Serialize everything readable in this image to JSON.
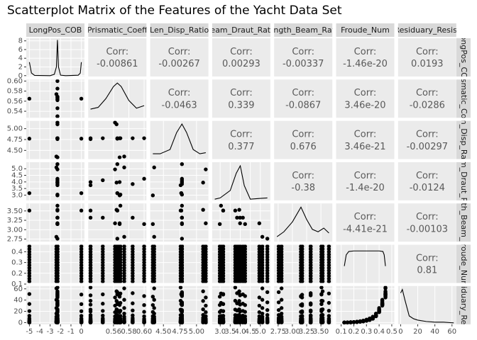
{
  "chart_data": {
    "type": "scatter_matrix",
    "title": "Scatterplot Matrix of the Features of the Yacht Data Set",
    "corr_label": "Corr:",
    "point_color": "#000000",
    "variables": [
      {
        "name": "LongPos_COB",
        "xlim": [
          -5.3,
          0.3
        ],
        "xticks": [
          -5,
          -4,
          -3,
          -2,
          -1,
          0
        ],
        "density": {
          "x": [
            -5,
            -4.8,
            -4.5,
            -3,
            -2.6,
            -2.4,
            -2.3,
            -2.2,
            -2,
            -1.5,
            -0.3,
            -0.1,
            0
          ],
          "y": [
            3.1,
            0.6,
            0.05,
            0,
            0.3,
            2,
            8.2,
            2,
            0.1,
            0,
            0.1,
            0.6,
            3.1
          ],
          "ylim": [
            -0.2,
            8.6
          ],
          "yticks": [
            0,
            2,
            4,
            6,
            8
          ]
        }
      },
      {
        "name": "Prismatic_Coeff",
        "xlim": [
          0.527,
          0.603
        ],
        "xticks": [
          0.56,
          0.58,
          {
            "value": 0.6,
            "label": "0.60"
          }
        ],
        "ylim": [
          0.527,
          0.603
        ],
        "yticks": [
          0.54,
          0.56,
          0.58,
          {
            "value": 0.6,
            "label": "0.60"
          }
        ],
        "density": {
          "x": [
            0.53,
            0.54,
            0.55,
            0.56,
            0.565,
            0.57,
            0.58,
            0.59,
            0.6
          ],
          "y": [
            10,
            12,
            22,
            36,
            40,
            36,
            20,
            11,
            14
          ],
          "ylim": [
            0,
            44
          ]
        }
      },
      {
        "name": "Len_Disp_Ratio",
        "xlim": [
          4.3,
          5.18
        ],
        "xticks": [
          {
            "value": 4.5,
            "label": "4.50"
          },
          4.75,
          {
            "value": 5,
            "label": "5.00"
          }
        ],
        "ylim": [
          4.3,
          5.18
        ],
        "yticks": [
          {
            "value": 4.5,
            "label": "4.50"
          },
          4.75,
          {
            "value": 5,
            "label": "5.00"
          }
        ],
        "density": {
          "x": [
            4.34,
            4.45,
            4.6,
            4.7,
            4.78,
            4.85,
            4.95,
            5.05,
            5.14
          ],
          "y": [
            0.5,
            0.5,
            0.9,
            2.5,
            3.3,
            2.5,
            0.9,
            0.5,
            0.6
          ],
          "ylim": [
            0,
            3.6
          ]
        }
      },
      {
        "name": "Beam_Draut_Ratio",
        "xlim": [
          2.6,
          5.5
        ],
        "xticks": [
          {
            "value": 3,
            "label": "3.0"
          },
          3.5,
          {
            "value": 4,
            "label": "4.0"
          },
          4.5,
          {
            "value": 5,
            "label": "5.0"
          }
        ],
        "ylim": [
          2.6,
          5.5
        ],
        "yticks": [
          {
            "value": 3,
            "label": "3.0"
          },
          3.5,
          {
            "value": 4,
            "label": "4.0"
          },
          4.5,
          {
            "value": 5,
            "label": "5.0"
          }
        ],
        "density": {
          "x": [
            2.73,
            3,
            3.5,
            3.8,
            4,
            4.2,
            4.5,
            5,
            5.35
          ],
          "y": [
            0.05,
            0.1,
            0.4,
            1.1,
            1.4,
            0.6,
            0.05,
            0.08,
            0.1
          ],
          "ylim": [
            0,
            1.55
          ]
        }
      },
      {
        "name": "Length_Beam_Ratio",
        "xlim": [
          2.68,
          3.7
        ],
        "xticks": [
          2.75,
          {
            "value": 3,
            "label": "3.00"
          },
          3.25,
          {
            "value": 3.5,
            "label": "3.50"
          }
        ],
        "ylim": [
          2.68,
          3.7
        ],
        "yticks": [
          2.75,
          {
            "value": 3,
            "label": "3.00"
          },
          3.25,
          {
            "value": 3.5,
            "label": "3.50"
          }
        ],
        "density": {
          "x": [
            2.73,
            2.85,
            3,
            3.15,
            3.25,
            3.35,
            3.45,
            3.55,
            3.64
          ],
          "y": [
            0.4,
            0.8,
            1.6,
            2.8,
            1.8,
            1,
            0.8,
            1.1,
            0.7
          ],
          "ylim": [
            0,
            3.1
          ]
        }
      },
      {
        "name": "Froude_Num",
        "xlim": [
          0.06,
          0.52
        ],
        "xticks": [
          0.1,
          0.2,
          0.3,
          0.4,
          0.5
        ],
        "ylim": [
          0.11,
          0.465
        ],
        "yticks": [
          0.1,
          0.2,
          0.3,
          0.4
        ],
        "density": {
          "x": [
            0.125,
            0.14,
            0.16,
            0.2,
            0.3,
            0.4,
            0.43,
            0.44,
            0.45
          ],
          "y": [
            1.5,
            2.5,
            2.8,
            2.85,
            2.85,
            2.85,
            2.8,
            2.5,
            1.5
          ],
          "ylim": [
            0,
            3.4
          ]
        }
      },
      {
        "name": "Residuary_Resist",
        "xlim": [
          -3,
          65
        ],
        "xticks": [
          0,
          20,
          40,
          60
        ],
        "ylim": [
          -3,
          65
        ],
        "yticks": [
          0,
          20,
          40,
          60
        ],
        "density": {
          "x": [
            0.01,
            2,
            5,
            10,
            15,
            20,
            30,
            40,
            50,
            62
          ],
          "y": [
            0.045,
            0.05,
            0.035,
            0.012,
            0.008,
            0.006,
            0.004,
            0.003,
            0.003,
            0.002
          ],
          "ylim": [
            0,
            0.055
          ]
        }
      }
    ],
    "correlations": [
      [
        -0.00861,
        -0.00267,
        0.00293,
        -0.00337,
        -1.46e-20,
        0.0193
      ],
      [
        -0.0463,
        0.339,
        -0.0867,
        3.46e-20,
        -0.0286
      ],
      [
        0.377,
        0.676,
        3.46e-21,
        -0.00297
      ],
      [
        -0.38,
        -1.4e-20,
        -0.0124
      ],
      [
        -4.41e-21,
        -0.00103
      ],
      [
        0.81
      ]
    ],
    "hulls": [
      [
        -2.3,
        0.568,
        4.78,
        3.99,
        3.17
      ],
      [
        -2.3,
        0.569,
        4.78,
        3.04,
        3.64
      ],
      [
        -2.3,
        0.565,
        4.78,
        5.35,
        2.76
      ],
      [
        -2.3,
        0.564,
        5.1,
        3.95,
        3.53
      ],
      [
        -2.4,
        0.574,
        4.36,
        5.1,
        2.81
      ],
      [
        -2.3,
        0.568,
        4.34,
        2.98,
        3.15
      ],
      [
        -2.3,
        0.562,
        5.14,
        4.95,
        3.17
      ],
      [
        -2.3,
        0.585,
        4.78,
        3.84,
        3.32
      ],
      [
        -2.3,
        0.546,
        4.78,
        4.13,
        3.32
      ],
      [
        -2.3,
        0.53,
        4.78,
        3.99,
        3.32
      ],
      [
        -2.3,
        0.6,
        4.78,
        4.24,
        3.15
      ],
      [
        -5,
        0.565,
        4.77,
        3.15,
        3.51
      ],
      [
        0,
        0.565,
        4.77,
        3.15,
        3.51
      ],
      [
        -2.3,
        0.53,
        4.76,
        3.75,
        3.51
      ]
    ],
    "froude": [
      0.125,
      0.15,
      0.175,
      0.2,
      0.225,
      0.25,
      0.275,
      0.3,
      0.325,
      0.35,
      0.375,
      0.4,
      0.425,
      0.45
    ],
    "residuary": [
      [
        0.11,
        0.27,
        0.47,
        0.78,
        1.18,
        1.82,
        2.61,
        3.76,
        4.99,
        7.16,
        11.93,
        20.11,
        32.75,
        49.49
      ],
      [
        0.04,
        0.17,
        0.37,
        0.66,
        1.06,
        1.59,
        2.33,
        3.29,
        4.61,
        7.11,
        11.99,
        21.09,
        35.01,
        51.8
      ],
      [
        0.09,
        0.29,
        0.56,
        0.86,
        1.31,
        1.99,
        3.12,
        4.41,
        6.12,
        8.12,
        13.52,
        22.26,
        36.04,
        54.12
      ],
      [
        0.2,
        0.35,
        0.65,
        0.93,
        1.37,
        1.97,
        2.91,
        4.25,
        5.85,
        8.58,
        13.6,
        23.58,
        38.48,
        55.62
      ],
      [
        0.2,
        0.38,
        0.72,
        1.11,
        1.65,
        2.46,
        3.65,
        5.27,
        7.36,
        10.46,
        16.04,
        25.9,
        40.52,
        60.84
      ],
      [
        0.01,
        0.1,
        0.3,
        0.6,
        1.01,
        1.5,
        2.22,
        3.3,
        4.9,
        7.3,
        11.5,
        18.9,
        31.2,
        46.1
      ],
      [
        0.1,
        0.2,
        0.4,
        0.7,
        1.1,
        1.6,
        2.3,
        3.2,
        4.7,
        7,
        11.3,
        18.5,
        30.1,
        44.6
      ],
      [
        0.15,
        0.32,
        0.55,
        0.9,
        1.3,
        1.9,
        2.8,
        4,
        5.5,
        8.1,
        12.8,
        21.5,
        34.2,
        52.3
      ],
      [
        0.12,
        0.3,
        0.5,
        0.82,
        1.22,
        1.85,
        2.7,
        3.9,
        5.3,
        7.6,
        12.4,
        20.8,
        33.6,
        50.2
      ],
      [
        0.08,
        0.25,
        0.45,
        0.75,
        1.15,
        1.78,
        2.55,
        3.65,
        4.85,
        7,
        11.6,
        19.8,
        31.9,
        48.4
      ],
      [
        0.05,
        0.22,
        0.42,
        0.7,
        1.1,
        1.7,
        2.45,
        3.5,
        4.7,
        6.8,
        11.2,
        19.1,
        31.1,
        47.2
      ],
      [
        0.06,
        0.24,
        0.48,
        0.8,
        1.2,
        1.8,
        2.6,
        3.7,
        5.1,
        7.4,
        12.1,
        20.5,
        33.1,
        50.8
      ],
      [
        0.06,
        0.23,
        0.46,
        0.78,
        1.19,
        1.8,
        2.62,
        3.72,
        5.05,
        7.3,
        12,
        20.3,
        32.9,
        49.9
      ],
      [
        0.13,
        0.31,
        0.58,
        0.95,
        1.4,
        2.05,
        2.95,
        4.2,
        5.8,
        8.4,
        13.4,
        23.1,
        38.8,
        62.42
      ]
    ]
  }
}
